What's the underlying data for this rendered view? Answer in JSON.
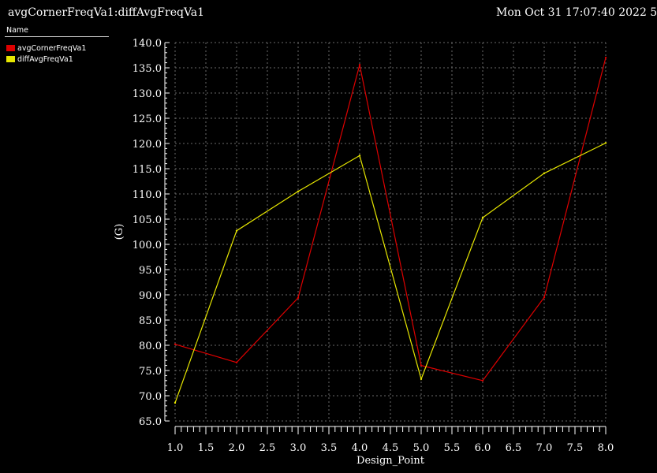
{
  "window": {
    "title": "avgCornerFreqVa1:diffAvgFreqVa1",
    "timestamp": "Mon Oct 31 17:07:40 2022  5"
  },
  "legend": {
    "header": "Name",
    "items": [
      {
        "label": "avgCornerFreqVa1",
        "color": "#dd0000"
      },
      {
        "label": "diffAvgFreqVa1",
        "color": "#e6e600"
      }
    ]
  },
  "chart_data": {
    "type": "line",
    "title": "avgCornerFreqVa1:diffAvgFreqVa1",
    "xlabel": "Design_Point",
    "ylabel": "(G)",
    "xlim": [
      1.0,
      8.0
    ],
    "ylim": [
      65.0,
      140.0
    ],
    "xticks": [
      "1.0",
      "1.5",
      "2.0",
      "2.5",
      "3.0",
      "3.5",
      "4.0",
      "4.5",
      "5.0",
      "5.5",
      "6.0",
      "6.5",
      "7.0",
      "7.5",
      "8.0"
    ],
    "yticks": [
      "65.0",
      "70.0",
      "75.0",
      "80.0",
      "85.0",
      "90.0",
      "95.0",
      "100.0",
      "105.0",
      "110.0",
      "115.0",
      "120.0",
      "125.0",
      "130.0",
      "135.0",
      "140.0"
    ],
    "grid": true,
    "legend_position": "top-left",
    "x": [
      1,
      2,
      3,
      4,
      5,
      6,
      7,
      8
    ],
    "series": [
      {
        "name": "avgCornerFreqVa1",
        "color": "#dd0000",
        "values": [
          80.2,
          76.6,
          89.4,
          135.6,
          76.0,
          73.0,
          89.5,
          137.0
        ]
      },
      {
        "name": "diffAvgFreqVa1",
        "color": "#e6e600",
        "values": [
          68.6,
          102.7,
          110.5,
          117.6,
          73.3,
          105.3,
          114.1,
          120.1
        ]
      }
    ]
  }
}
